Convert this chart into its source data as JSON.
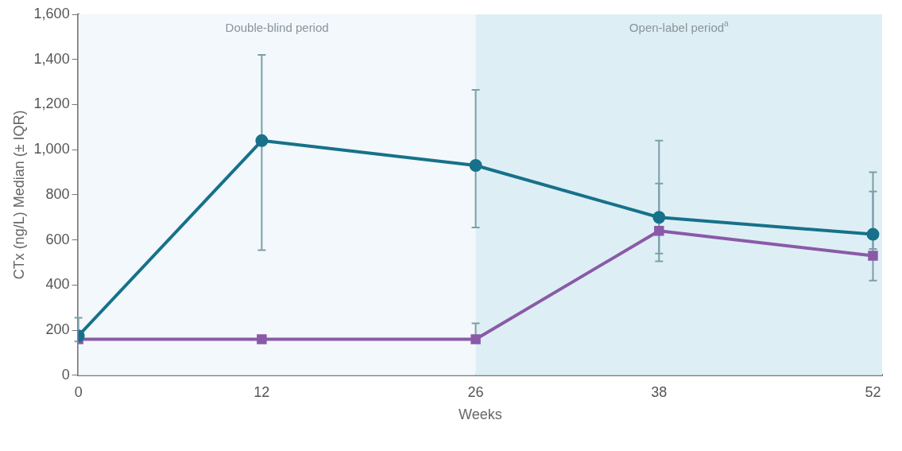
{
  "chart_data": {
    "type": "line",
    "xlabel": "Weeks",
    "ylabel": "CTx (ng/L) Median (± IQR)",
    "x": [
      0,
      12,
      26,
      38,
      52
    ],
    "series": [
      {
        "color": "#17718a",
        "marker": "circle",
        "values": [
          175,
          1040,
          930,
          700,
          625
        ],
        "errors": [
          [
            150,
            255
          ],
          [
            555,
            1420
          ],
          [
            655,
            1265
          ],
          [
            540,
            1040
          ],
          [
            560,
            900
          ]
        ]
      },
      {
        "color": "#8a5aa8",
        "marker": "square",
        "values": [
          160,
          160,
          160,
          640,
          530
        ],
        "errors": [
          null,
          null,
          [
            145,
            230
          ],
          [
            505,
            850
          ],
          [
            420,
            815
          ]
        ]
      }
    ],
    "xlim": [
      0,
      52.6
    ],
    "xticks": [
      0,
      12,
      26,
      38,
      52
    ],
    "ylim": [
      0,
      1600
    ],
    "yticks": [
      0,
      200,
      400,
      600,
      800,
      {
        "value": 1000,
        "label": "1,000"
      },
      {
        "value": 1200,
        "label": "1,200"
      },
      {
        "value": 1400,
        "label": "1,400"
      },
      {
        "value": 1600,
        "label": "1,600"
      }
    ],
    "bands": [
      {
        "axis": "x",
        "from": 0,
        "to": 26,
        "label": "Double-blind period",
        "color": "#f2f8fb"
      },
      {
        "axis": "x",
        "from": 26,
        "to": 52.6,
        "label": "Open-label period$^{a}$",
        "color": "#ddeff5"
      }
    ],
    "grid": false,
    "legend": false,
    "line_style": "solid"
  }
}
